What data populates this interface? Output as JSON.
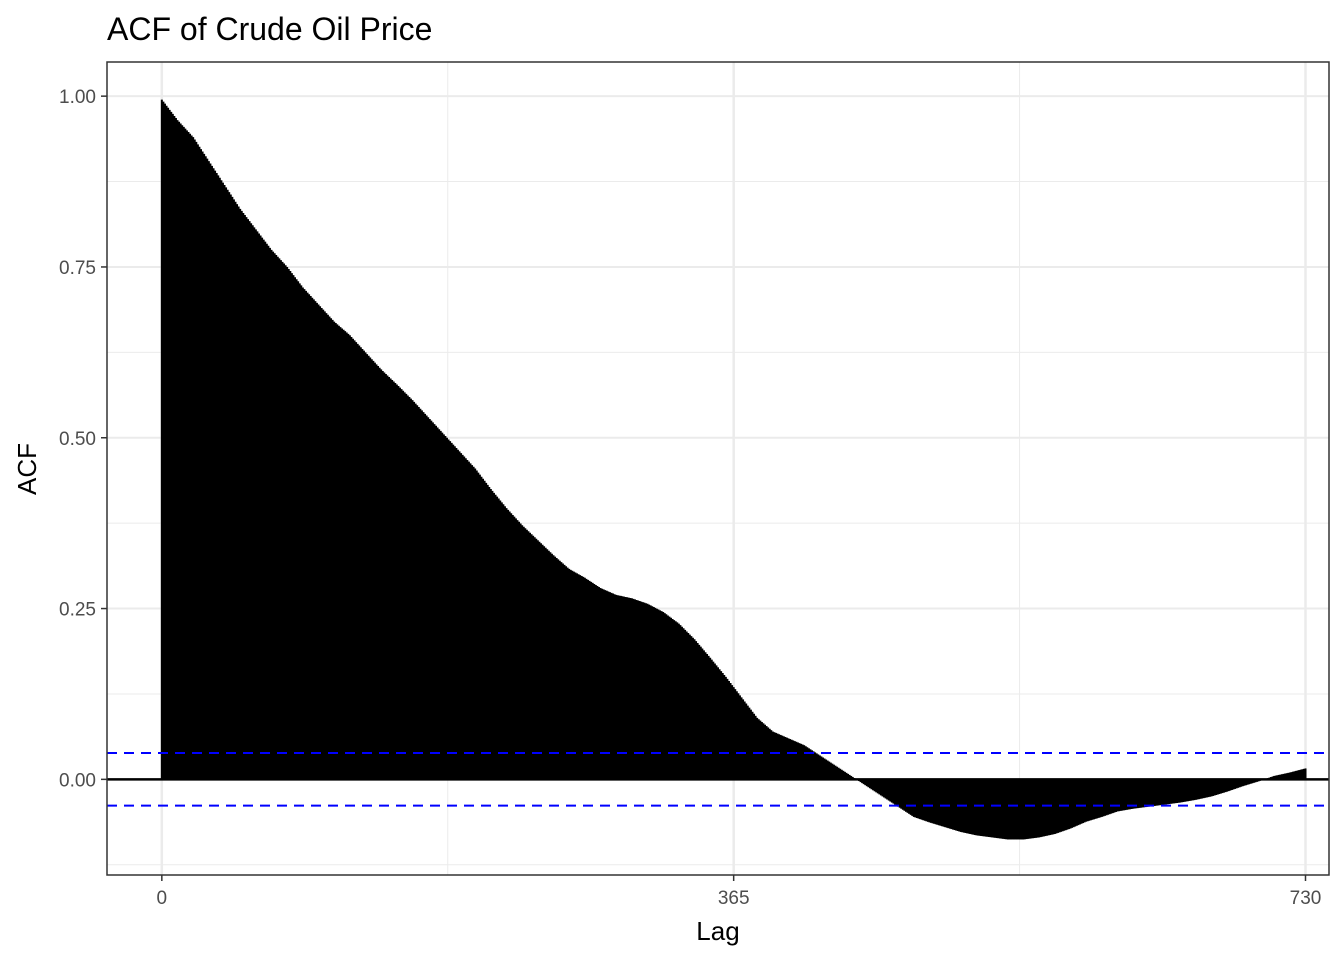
{
  "chart_data": {
    "type": "bar",
    "title": "ACF of Crude Oil Price",
    "xlabel": "Lag",
    "ylabel": "ACF",
    "xlim": [
      -35,
      745
    ],
    "ylim": [
      -0.14,
      1.05
    ],
    "x_ticks": [
      0,
      365,
      730
    ],
    "x_tick_labels": [
      "0",
      "365",
      "730"
    ],
    "y_ticks": [
      0.0,
      0.25,
      0.5,
      0.75,
      1.0
    ],
    "y_tick_labels": [
      "0.00",
      "0.25",
      "0.50",
      "0.75",
      "1.00"
    ],
    "y_minor_ticks": [
      -0.125,
      0.125,
      0.375,
      0.625,
      0.875
    ],
    "grid": true,
    "confidence_bounds": [
      0.0385,
      -0.0385
    ],
    "lag_max": 730,
    "acf_curve": [
      [
        0,
        0.995
      ],
      [
        10,
        0.965
      ],
      [
        20,
        0.94
      ],
      [
        30,
        0.905
      ],
      [
        40,
        0.87
      ],
      [
        50,
        0.835
      ],
      [
        60,
        0.805
      ],
      [
        70,
        0.775
      ],
      [
        80,
        0.75
      ],
      [
        90,
        0.72
      ],
      [
        100,
        0.695
      ],
      [
        110,
        0.67
      ],
      [
        120,
        0.65
      ],
      [
        130,
        0.625
      ],
      [
        140,
        0.6
      ],
      [
        150,
        0.578
      ],
      [
        160,
        0.555
      ],
      [
        170,
        0.53
      ],
      [
        180,
        0.505
      ],
      [
        190,
        0.48
      ],
      [
        200,
        0.455
      ],
      [
        210,
        0.425
      ],
      [
        220,
        0.397
      ],
      [
        230,
        0.372
      ],
      [
        240,
        0.35
      ],
      [
        250,
        0.328
      ],
      [
        260,
        0.308
      ],
      [
        270,
        0.295
      ],
      [
        280,
        0.28
      ],
      [
        290,
        0.27
      ],
      [
        300,
        0.265
      ],
      [
        310,
        0.257
      ],
      [
        320,
        0.245
      ],
      [
        330,
        0.228
      ],
      [
        340,
        0.205
      ],
      [
        350,
        0.178
      ],
      [
        360,
        0.15
      ],
      [
        370,
        0.12
      ],
      [
        380,
        0.09
      ],
      [
        390,
        0.07
      ],
      [
        400,
        0.06
      ],
      [
        410,
        0.05
      ],
      [
        420,
        0.035
      ],
      [
        430,
        0.02
      ],
      [
        440,
        0.005
      ],
      [
        450,
        -0.01
      ],
      [
        460,
        -0.025
      ],
      [
        470,
        -0.04
      ],
      [
        480,
        -0.055
      ],
      [
        490,
        -0.063
      ],
      [
        500,
        -0.07
      ],
      [
        510,
        -0.077
      ],
      [
        520,
        -0.082
      ],
      [
        530,
        -0.085
      ],
      [
        540,
        -0.088
      ],
      [
        550,
        -0.088
      ],
      [
        560,
        -0.085
      ],
      [
        570,
        -0.08
      ],
      [
        580,
        -0.072
      ],
      [
        590,
        -0.062
      ],
      [
        600,
        -0.055
      ],
      [
        610,
        -0.047
      ],
      [
        620,
        -0.043
      ],
      [
        630,
        -0.04
      ],
      [
        640,
        -0.037
      ],
      [
        650,
        -0.034
      ],
      [
        660,
        -0.03
      ],
      [
        670,
        -0.025
      ],
      [
        680,
        -0.018
      ],
      [
        690,
        -0.01
      ],
      [
        700,
        -0.003
      ],
      [
        710,
        0.005
      ],
      [
        720,
        0.01
      ],
      [
        730,
        0.016
      ]
    ]
  }
}
